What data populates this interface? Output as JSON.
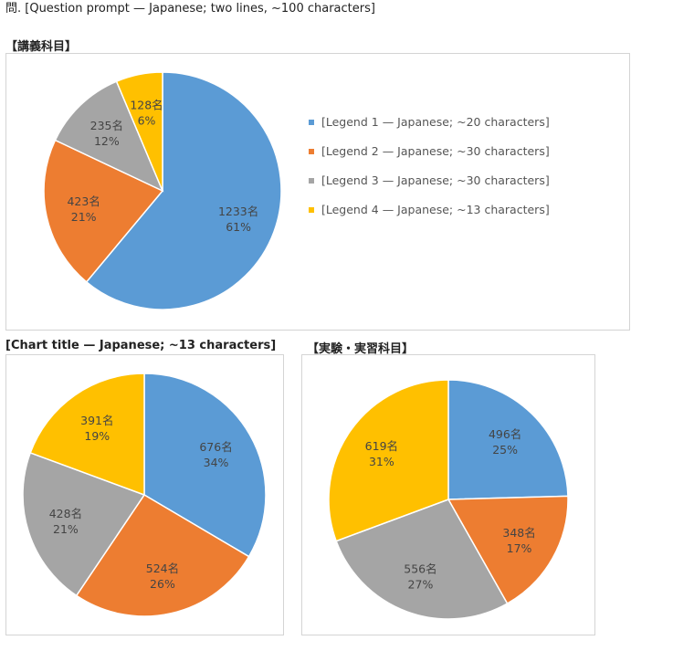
{
  "question": "問. [Question prompt — Japanese; two lines, ~100 characters]",
  "colors": {
    "online_only": "#5b9bd5",
    "online_base": "#ed7d31",
    "inperson_base": "#a5a5a5",
    "inperson_only": "#ffc000"
  },
  "legend": [
    {
      "key": "online_only",
      "label": "[Legend 1 — Japanese; ~20 characters]"
    },
    {
      "key": "online_base",
      "label": "[Legend 2 — Japanese; ~30 characters]"
    },
    {
      "key": "inperson_base",
      "label": "[Legend 3 — Japanese; ~30 characters]"
    },
    {
      "key": "inperson_only",
      "label": "[Legend 4 — Japanese; ~13 characters]"
    }
  ],
  "chart_data": [
    {
      "type": "pie",
      "title": "【講義科目】",
      "categories": [
        "online_only",
        "online_base",
        "inperson_base",
        "inperson_only"
      ],
      "values": [
        1233,
        423,
        235,
        128
      ],
      "labels": [
        "1233名",
        "423名",
        "235名",
        "128名"
      ],
      "percents": [
        "61%",
        "21%",
        "12%",
        "6%"
      ]
    },
    {
      "type": "pie",
      "title": "[Chart title — Japanese; ~13 characters]",
      "categories": [
        "online_only",
        "online_base",
        "inperson_base",
        "inperson_only"
      ],
      "values": [
        676,
        524,
        428,
        391
      ],
      "labels": [
        "676名",
        "524名",
        "428名",
        "391名"
      ],
      "percents": [
        "34%",
        "26%",
        "21%",
        "19%"
      ]
    },
    {
      "type": "pie",
      "title": "【実験・実習科目】",
      "categories": [
        "online_only",
        "online_base",
        "inperson_base",
        "inperson_only"
      ],
      "values": [
        496,
        348,
        556,
        619
      ],
      "labels": [
        "496名",
        "348名",
        "556名",
        "619名"
      ],
      "percents": [
        "25%",
        "17%",
        "27%",
        "31%"
      ]
    }
  ]
}
